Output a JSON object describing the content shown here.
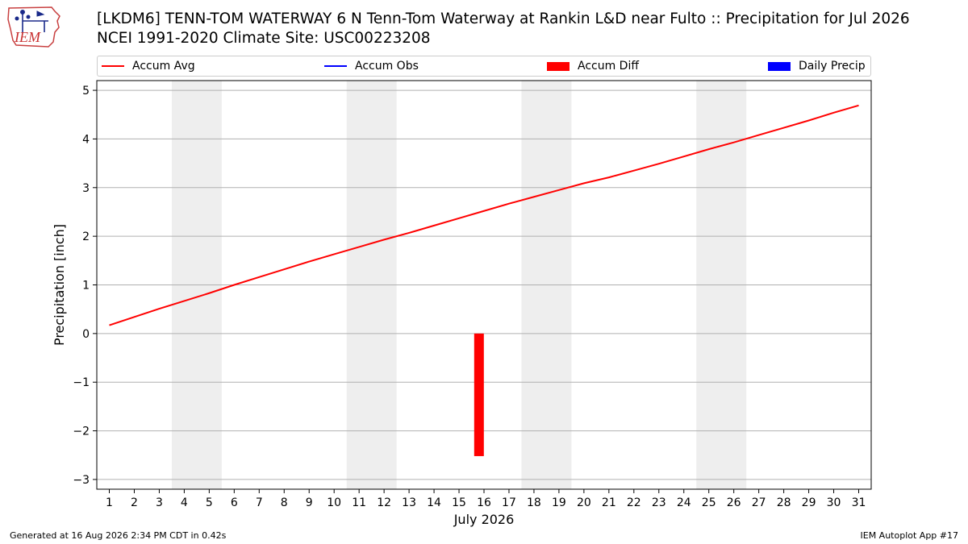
{
  "header": {
    "logo_text": "IEM",
    "title_line1": "[LKDM6] TENN-TOM WATERWAY 6 N Tenn-Tom Waterway at Rankin L&D near Fulto :: Precipitation for Jul 2026",
    "title_line2": "NCEI 1991-2020 Climate Site: USC00223208"
  },
  "legend": {
    "items": [
      {
        "label": "Accum Avg",
        "color": "#ff0000",
        "kind": "line"
      },
      {
        "label": "Accum Obs",
        "color": "#0000ff",
        "kind": "line"
      },
      {
        "label": "Accum Diff",
        "color": "#ff0000",
        "kind": "box"
      },
      {
        "label": "Daily Precip",
        "color": "#0000ff",
        "kind": "box"
      }
    ]
  },
  "footer": {
    "left": "Generated at 16 Aug 2026 2:34 PM CDT in 0.42s",
    "right": "IEM Autoplot App #17"
  },
  "chart_data": {
    "type": "line",
    "xlabel": "July 2026",
    "ylabel": "Precipitation [inch]",
    "x": [
      1,
      2,
      3,
      4,
      5,
      6,
      7,
      8,
      9,
      10,
      11,
      12,
      13,
      14,
      15,
      16,
      17,
      18,
      19,
      20,
      21,
      22,
      23,
      24,
      25,
      26,
      27,
      28,
      29,
      30,
      31
    ],
    "xlim": [
      0.5,
      31.5
    ],
    "ylim": [
      -3.2,
      5.2
    ],
    "yticks": [
      -3,
      -2,
      -1,
      0,
      1,
      2,
      3,
      4,
      5
    ],
    "ytick_labels": [
      "−3",
      "−2",
      "−1",
      "0",
      "1",
      "2",
      "3",
      "4",
      "5"
    ],
    "grid": true,
    "weekend_shading": [
      [
        3.5,
        5.5
      ],
      [
        10.5,
        12.5
      ],
      [
        17.5,
        19.5
      ],
      [
        24.5,
        26.5
      ]
    ],
    "shade_color": "#eeeeee",
    "series": [
      {
        "name": "Accum Avg",
        "type": "line",
        "color": "#ff0000",
        "values": [
          0.17,
          0.34,
          0.51,
          0.67,
          0.83,
          1.0,
          1.16,
          1.32,
          1.48,
          1.63,
          1.78,
          1.93,
          2.07,
          2.22,
          2.37,
          2.52,
          2.67,
          2.81,
          2.95,
          3.09,
          3.21,
          3.35,
          3.49,
          3.64,
          3.79,
          3.93,
          4.08,
          4.23,
          4.38,
          4.54,
          4.69
        ]
      },
      {
        "name": "Accum Diff",
        "type": "bar",
        "color": "#ff0000",
        "points": [
          {
            "x": 15.8,
            "value": -2.52
          }
        ]
      }
    ]
  }
}
